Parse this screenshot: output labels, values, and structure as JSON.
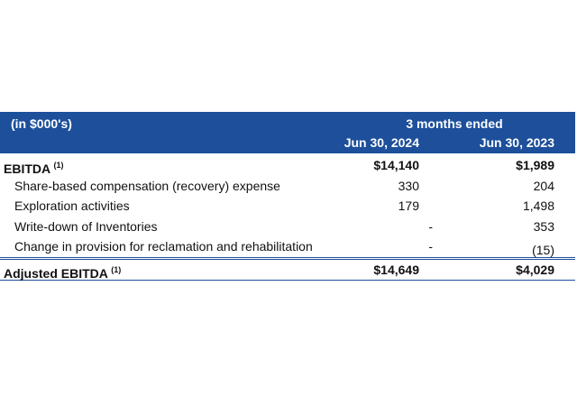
{
  "header": {
    "unit": "(in $000's)",
    "period": "3 months ended",
    "col1": "Jun 30, 2024",
    "col2": "Jun 30, 2023"
  },
  "ebitda": {
    "label": "EBITDA",
    "note": "(1)",
    "v1": "$14,140",
    "v2": "$1,989"
  },
  "items": [
    {
      "label": "Share-based compensation (recovery) expense",
      "v1": "330",
      "v2": "204"
    },
    {
      "label": "Exploration activities",
      "v1": "179",
      "v2": "1,498"
    },
    {
      "label": "Write-down of Inventories",
      "v1": "-",
      "v2": "353"
    },
    {
      "label": "Change in provision for reclamation and rehabilitation",
      "v1": "-",
      "v2": "(15)"
    }
  ],
  "adjusted": {
    "label": "Adjusted EBITDA",
    "note": "(1)",
    "v1": "$14,649",
    "v2": "$4,029"
  },
  "colors": {
    "header_bg": "#1d4f9b"
  }
}
